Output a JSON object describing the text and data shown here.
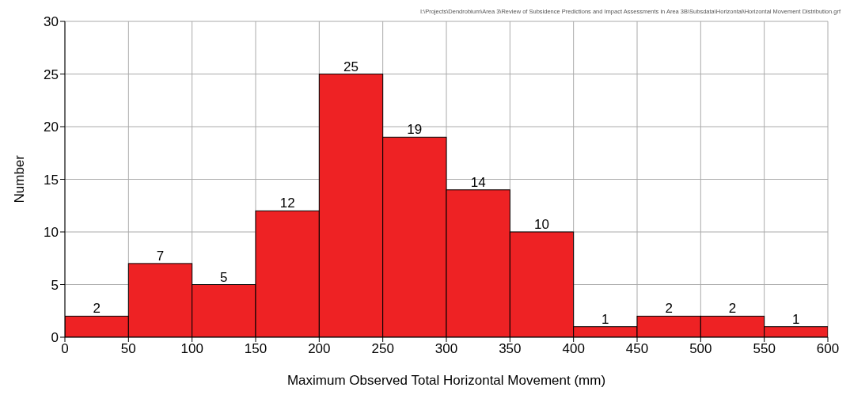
{
  "chart_data": {
    "type": "histogram",
    "xlabel": "Maximum Observed Total Horizontal Movement (mm)",
    "ylabel": "Number",
    "annotations": [
      "I:\\Projects\\Dendrobium\\Area 3\\Review of Subsidence Predictions and Impact Assessments in Area 3B\\Subsdata\\Horizontal\\Horizontal Movement Distribution.grf"
    ],
    "bins": [
      0,
      50,
      100,
      150,
      200,
      250,
      300,
      350,
      400,
      450,
      500,
      550,
      600
    ],
    "values": [
      2,
      7,
      5,
      12,
      25,
      19,
      14,
      10,
      1,
      2,
      2,
      1
    ],
    "color": "#ee2224",
    "data_labels": true,
    "xlim": [
      0,
      600
    ],
    "xticks": [
      0,
      50,
      100,
      150,
      200,
      250,
      300,
      350,
      400,
      450,
      500,
      550,
      600
    ],
    "ylim": [
      0,
      30
    ],
    "yticks": [
      0,
      5,
      10,
      15,
      20,
      25,
      30
    ],
    "grid": true
  }
}
